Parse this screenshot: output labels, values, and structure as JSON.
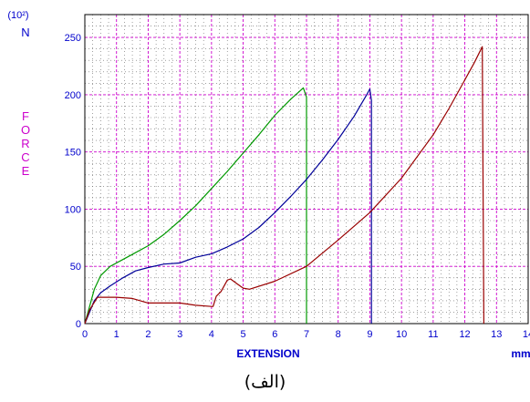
{
  "chart_data": {
    "type": "line",
    "unit_exponent": "(10²)",
    "ylabel_unit": "N",
    "ylabel": "FORCE",
    "xlabel": "EXTENSION",
    "xlabel_unit": "mm",
    "xlim": [
      0,
      14
    ],
    "ylim": [
      0,
      270
    ],
    "x_ticks": [
      "0",
      "1",
      "2",
      "3",
      "4",
      "5",
      "6",
      "7",
      "8",
      "9",
      "10",
      "11",
      "12",
      "13",
      "14"
    ],
    "y_ticks": [
      "0",
      "50",
      "100",
      "150",
      "200",
      "250"
    ],
    "grid": true,
    "colors": {
      "axis_text": "#0000cc",
      "ylabel_text": "#cc00cc",
      "major_grid": "#cc00cc",
      "minor_grid": "#666666"
    },
    "series": [
      {
        "color": "#009900",
        "points": [
          [
            0,
            0
          ],
          [
            0.15,
            15
          ],
          [
            0.3,
            30
          ],
          [
            0.5,
            42
          ],
          [
            0.8,
            50
          ],
          [
            1.2,
            56
          ],
          [
            1.6,
            62
          ],
          [
            2,
            68
          ],
          [
            2.5,
            78
          ],
          [
            3,
            90
          ],
          [
            3.5,
            103
          ],
          [
            4,
            118
          ],
          [
            4.5,
            133
          ],
          [
            5,
            149
          ],
          [
            5.5,
            165
          ],
          [
            6,
            182
          ],
          [
            6.5,
            196
          ],
          [
            6.9,
            206
          ],
          [
            7,
            198
          ],
          [
            7,
            0
          ]
        ]
      },
      {
        "color": "#000099",
        "points": [
          [
            0,
            0
          ],
          [
            0.15,
            10
          ],
          [
            0.3,
            20
          ],
          [
            0.5,
            27
          ],
          [
            0.8,
            33
          ],
          [
            1.2,
            40
          ],
          [
            1.6,
            46
          ],
          [
            2,
            49
          ],
          [
            2.5,
            52
          ],
          [
            3,
            53
          ],
          [
            3.5,
            58
          ],
          [
            4,
            61
          ],
          [
            4.5,
            67
          ],
          [
            5,
            74
          ],
          [
            5.5,
            84
          ],
          [
            6,
            97
          ],
          [
            6.5,
            111
          ],
          [
            7,
            126
          ],
          [
            7.5,
            143
          ],
          [
            8,
            161
          ],
          [
            8.5,
            181
          ],
          [
            8.9,
            200
          ],
          [
            9,
            205
          ],
          [
            9.05,
            195
          ],
          [
            9.05,
            0
          ]
        ]
      },
      {
        "color": "#990000",
        "points": [
          [
            0,
            0
          ],
          [
            0.15,
            12
          ],
          [
            0.4,
            23
          ],
          [
            1,
            23
          ],
          [
            1.5,
            22
          ],
          [
            2,
            18
          ],
          [
            3,
            18
          ],
          [
            3.5,
            16
          ],
          [
            4,
            15
          ],
          [
            4.05,
            15
          ],
          [
            4.15,
            24
          ],
          [
            4.3,
            28
          ],
          [
            4.5,
            38
          ],
          [
            4.6,
            39
          ],
          [
            4.8,
            35
          ],
          [
            5,
            31
          ],
          [
            5.2,
            30
          ],
          [
            6,
            37
          ],
          [
            7,
            50
          ],
          [
            8,
            73
          ],
          [
            9,
            97
          ],
          [
            10,
            127
          ],
          [
            11,
            165
          ],
          [
            11.5,
            188
          ],
          [
            12,
            213
          ],
          [
            12.3,
            228
          ],
          [
            12.55,
            242
          ],
          [
            12.6,
            0
          ]
        ]
      }
    ]
  },
  "caption": "(الف)"
}
